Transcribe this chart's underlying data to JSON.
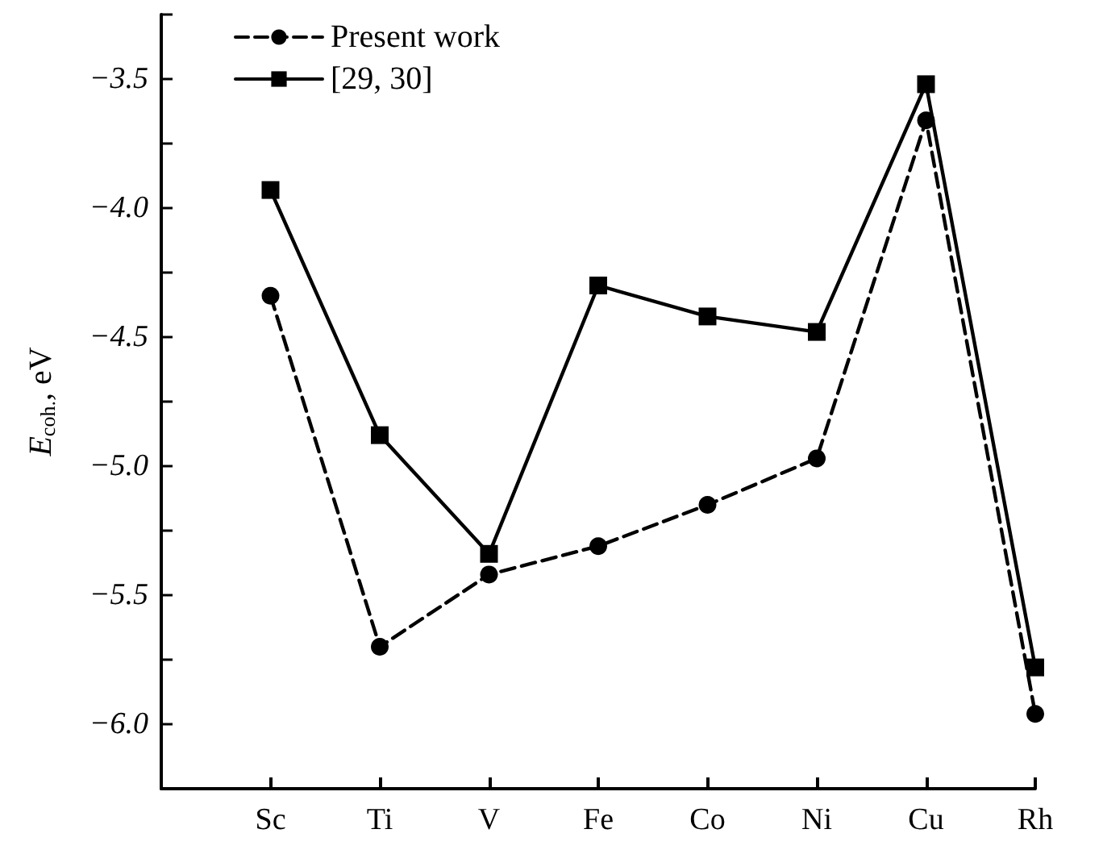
{
  "chart_data": {
    "type": "line",
    "ylabel": "E$_{coh.}$, eV",
    "categories": [
      null,
      "Sc",
      "Ti",
      "V",
      "Fe",
      "Co",
      "Ni",
      "Cu",
      "Rh"
    ],
    "series": [
      {
        "name": "Present work",
        "color": "#000000",
        "marker": "circle",
        "line_style": "dashed",
        "values": [
          null,
          -4.34,
          -5.7,
          -5.42,
          -5.31,
          -5.15,
          -4.97,
          -3.66,
          -5.96
        ]
      },
      {
        "name": "[29, 30]",
        "color": "#000000",
        "marker": "square",
        "line_style": "solid",
        "values": [
          null,
          -3.93,
          -4.88,
          -5.34,
          -4.3,
          -4.42,
          -4.48,
          -3.52,
          -5.78
        ]
      }
    ],
    "ylim": [
      -6.25,
      -3.25
    ],
    "yticks": [
      {
        "value": -6.25,
        "label": null
      },
      {
        "value": -6,
        "label": "−6.0"
      },
      {
        "value": -5.75,
        "label": null
      },
      {
        "value": -5.5,
        "label": "−5.5"
      },
      {
        "value": -5.25,
        "label": null
      },
      {
        "value": -5,
        "label": "−5.0"
      },
      {
        "value": -4.75,
        "label": null
      },
      {
        "value": -4.5,
        "label": "−4.5"
      },
      {
        "value": -4.25,
        "label": null
      },
      {
        "value": -4,
        "label": "−4.0"
      },
      {
        "value": -3.75,
        "label": null
      },
      {
        "value": -3.5,
        "label": "−3.5"
      },
      {
        "value": -3.25,
        "label": null
      }
    ],
    "grid": false,
    "legend": "top left"
  }
}
